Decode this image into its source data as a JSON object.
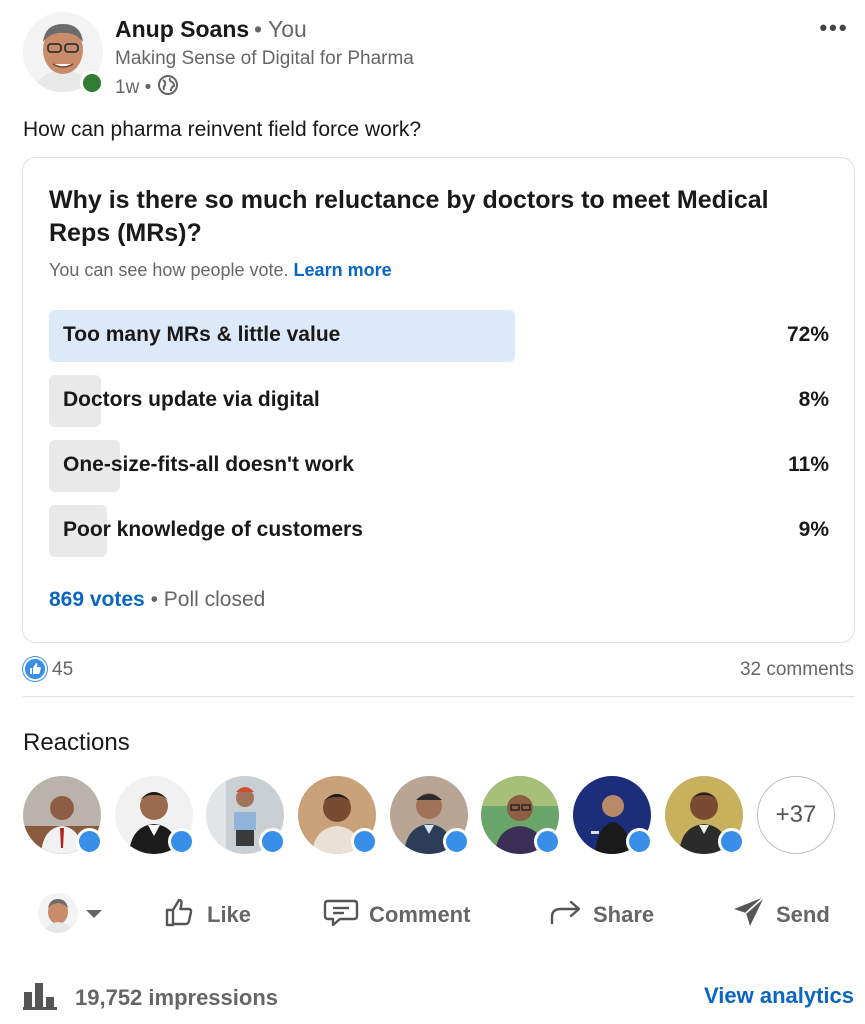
{
  "post": {
    "author": {
      "name": "Anup Soans",
      "relation": "• You",
      "headline": "Making Sense of Digital for Pharma",
      "age": "1w •"
    },
    "more_icon": "more-horizontal-icon",
    "text": "How can pharma reinvent field force work?"
  },
  "poll": {
    "question": "Why is there so much reluctance by doctors to meet Medical Reps (MRs)?",
    "note": "You can see how people vote.",
    "learn_more": "Learn more",
    "options": [
      {
        "label": "Too many MRs & little value",
        "percent_text": "72%",
        "share": 72
      },
      {
        "label": "Doctors update via digital",
        "percent_text": "8%",
        "share": 8
      },
      {
        "label": "One-size-fits-all doesn't work",
        "percent_text": "11%",
        "share": 11
      },
      {
        "label": "Poor knowledge of customers",
        "percent_text": "9%",
        "share": 9
      }
    ],
    "votes": "869 votes",
    "status": "• Poll closed"
  },
  "social": {
    "likes": "45",
    "comments": "32 comments"
  },
  "reactions": {
    "heading": "Reactions",
    "more": "+37"
  },
  "actions": {
    "like": "Like",
    "comment": "Comment",
    "share": "Share",
    "send": "Send"
  },
  "footer": {
    "impressions": "19,752 impressions",
    "view_analytics": "View analytics"
  },
  "colors": {
    "link": "#0a66c2",
    "leading_fill": "#dce9f9",
    "other_fill": "#e9e9e9",
    "like_badge": "#378fe9",
    "presence": "#2e7d32"
  }
}
